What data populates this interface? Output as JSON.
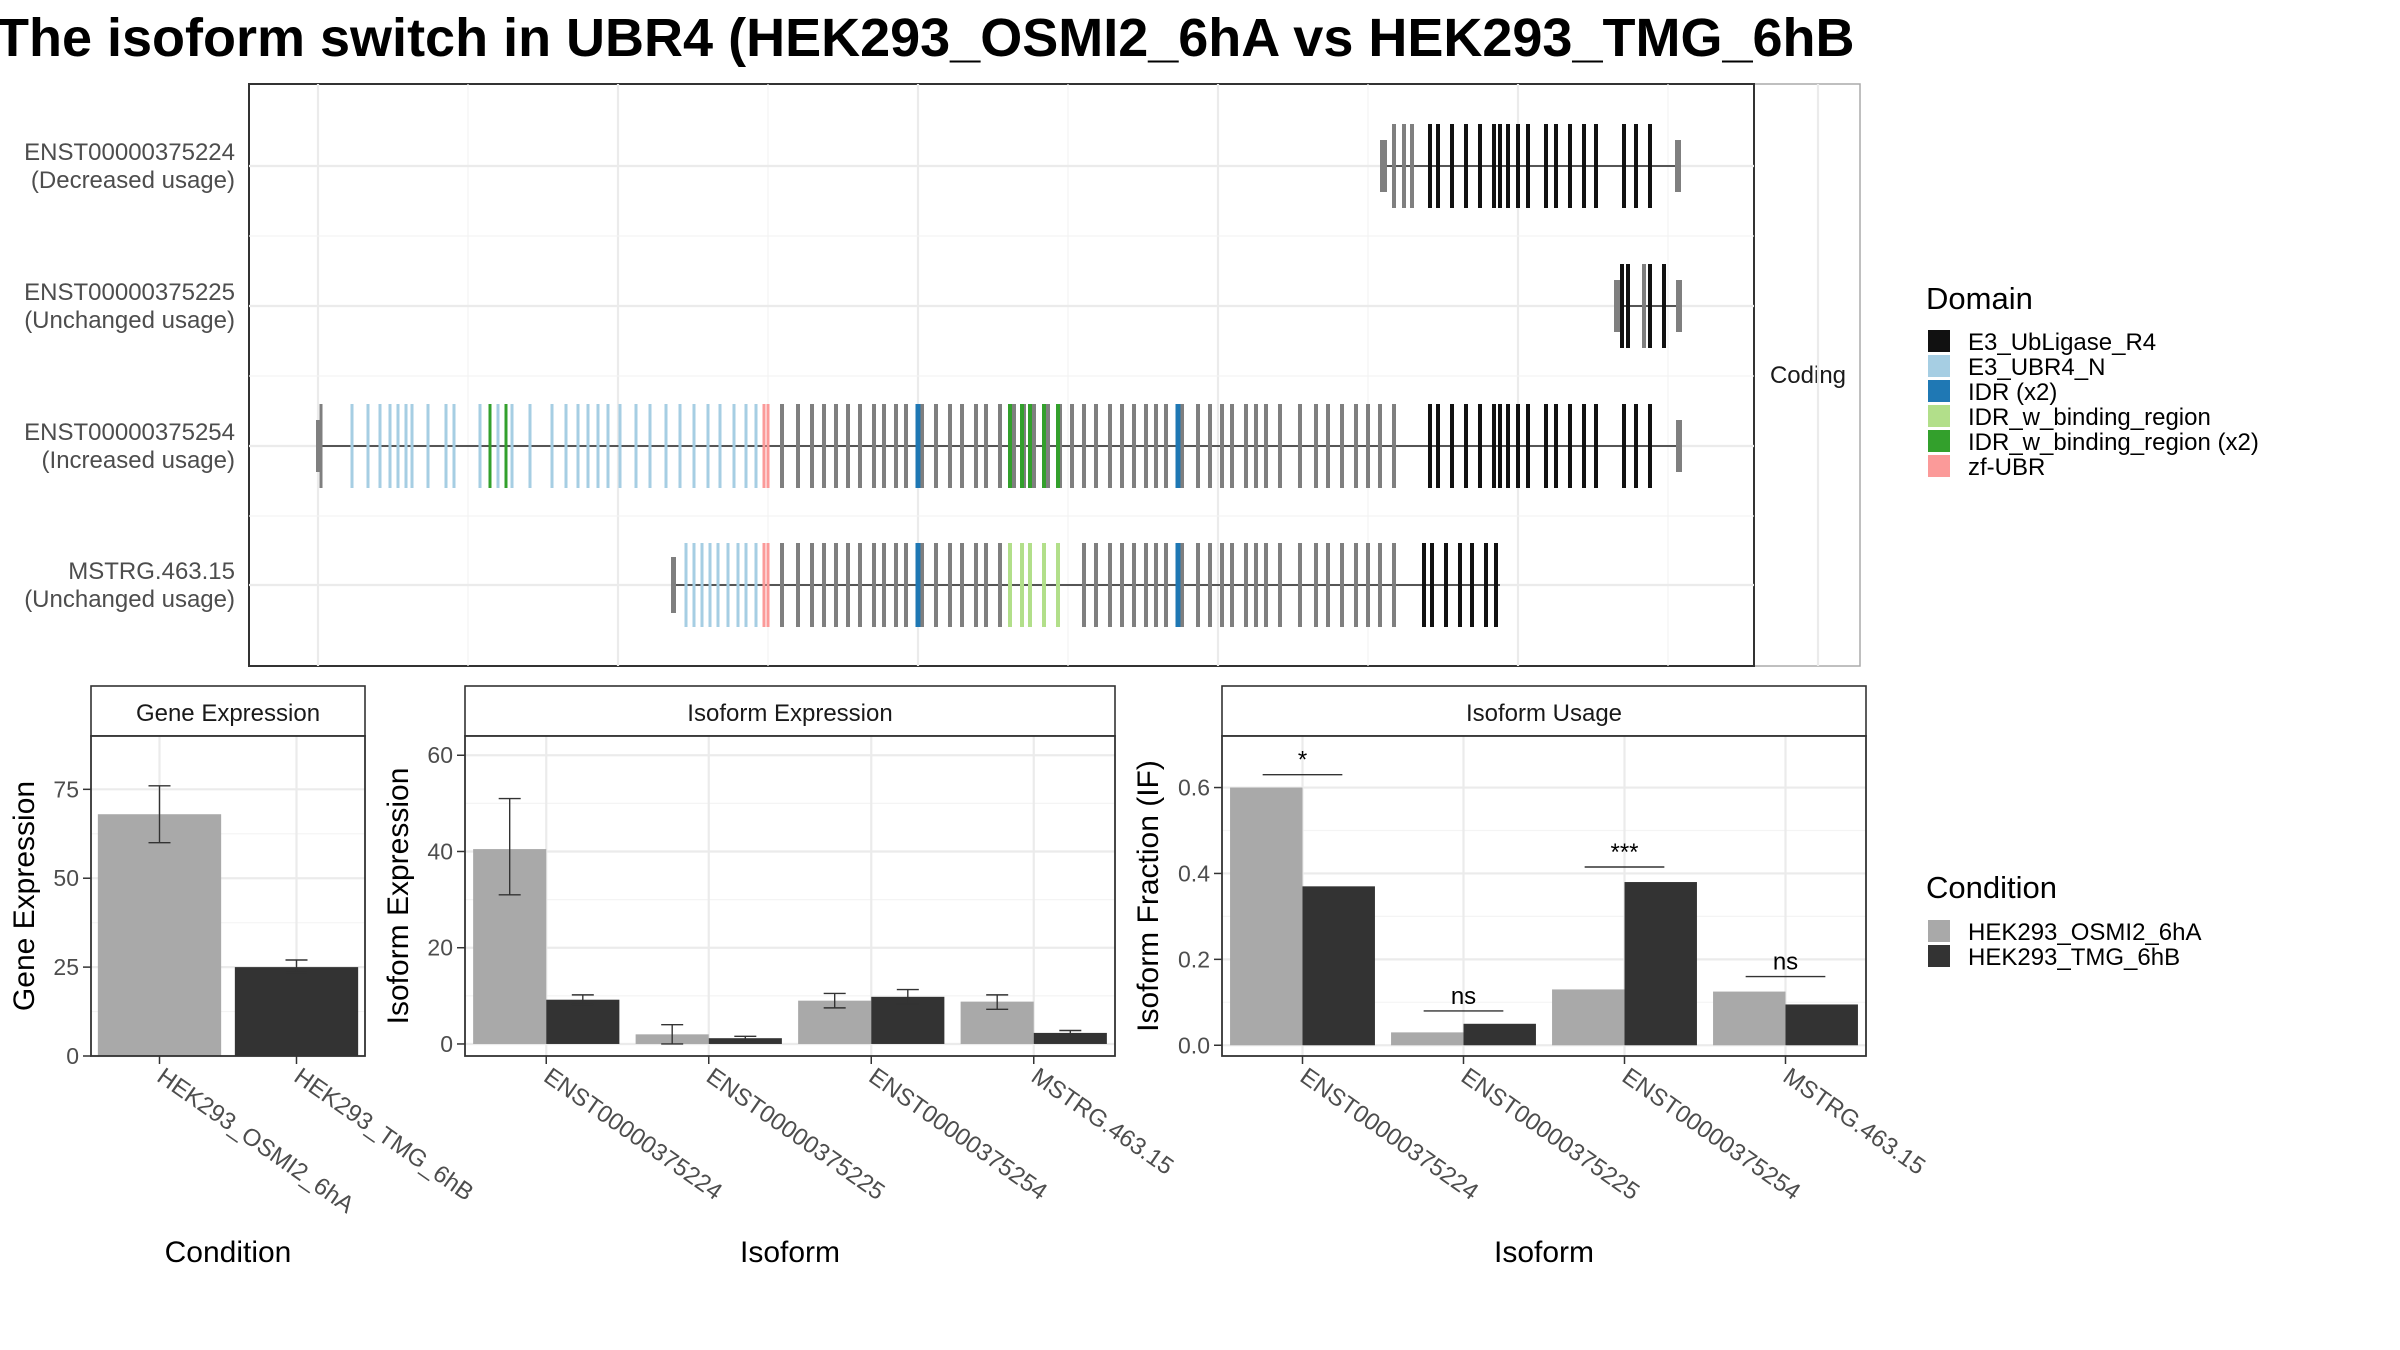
{
  "title": "The isoform switch in UBR4 (HEK293_OSMI2_6hA vs HEK293_TMG_6hB",
  "colors": {
    "cond_a": "#A9A9A9",
    "cond_b": "#333333",
    "utr": "#7F7F7F",
    "domain_E3_UbLigase_R4": "#111111",
    "domain_E3_UBR4_N": "#A6CEE3",
    "domain_IDR": "#1F78B4",
    "domain_IDR_w_binding_region": "#B2DF8A",
    "domain_IDR_w_binding_region_x2": "#33A02C",
    "domain_zf_UBR": "#FB9A99"
  },
  "structure_panel": {
    "strip_label": "Coding",
    "isoforms": [
      {
        "id": "ENST00000375224",
        "usage": "(Decreased usage)"
      },
      {
        "id": "ENST00000375225",
        "usage": "(Unchanged usage)"
      },
      {
        "id": "ENST00000375254",
        "usage": "(Increased usage)"
      },
      {
        "id": "MSTRG.463.15",
        "usage": "(Unchanged usage)"
      }
    ]
  },
  "domain_legend": {
    "title": "Domain",
    "entries": [
      "E3_UbLigase_R4",
      "E3_UBR4_N",
      "IDR (x2)",
      "IDR_w_binding_region",
      "IDR_w_binding_region (x2)",
      "zf-UBR"
    ]
  },
  "condition_legend": {
    "title": "Condition",
    "entries": [
      "HEK293_OSMI2_6hA",
      "HEK293_TMG_6hB"
    ]
  },
  "chart_data": [
    {
      "type": "bar",
      "panel_title": "Gene Expression",
      "xlabel": "Condition",
      "ylabel": "Gene Expression",
      "ylim": [
        0,
        90
      ],
      "yticks": [
        0,
        25,
        50,
        75
      ],
      "categories": [
        "HEK293_OSMI2_6hA",
        "HEK293_TMG_6hB"
      ],
      "values": [
        68,
        25
      ],
      "errors": [
        [
          60,
          76
        ],
        [
          23.5,
          27
        ]
      ]
    },
    {
      "type": "bar",
      "panel_title": "Isoform Expression",
      "xlabel": "Isoform",
      "ylabel": "Isoform Expression",
      "ylim": [
        -2.5,
        64
      ],
      "yticks": [
        0,
        20,
        40,
        60
      ],
      "categories": [
        "ENST00000375224",
        "ENST00000375225",
        "ENST00000375254",
        "MSTRG.463.15"
      ],
      "series": [
        {
          "name": "HEK293_OSMI2_6hA",
          "values": [
            40.5,
            2,
            9,
            8.8
          ],
          "errors": [
            [
              31,
              51
            ],
            [
              0,
              4
            ],
            [
              7.5,
              10.5
            ],
            [
              7.2,
              10.2
            ]
          ]
        },
        {
          "name": "HEK293_TMG_6hB",
          "values": [
            9.2,
            1.2,
            9.8,
            2.3
          ],
          "errors": [
            [
              8.2,
              10.2
            ],
            [
              0.9,
              1.6
            ],
            [
              8.3,
              11.3
            ],
            [
              1.8,
              2.8
            ]
          ]
        }
      ]
    },
    {
      "type": "bar",
      "panel_title": "Isoform Usage",
      "xlabel": "Isoform",
      "ylabel": "Isoform Fraction (IF)",
      "ylim": [
        -0.025,
        0.72
      ],
      "yticks": [
        "0.0",
        "0.2",
        "0.4",
        "0.6"
      ],
      "categories": [
        "ENST00000375224",
        "ENST00000375225",
        "ENST00000375254",
        "MSTRG.463.15"
      ],
      "series": [
        {
          "name": "HEK293_OSMI2_6hA",
          "values": [
            0.6,
            0.03,
            0.13,
            0.125
          ]
        },
        {
          "name": "HEK293_TMG_6hB",
          "values": [
            0.37,
            0.05,
            0.38,
            0.095
          ]
        }
      ],
      "significance": [
        "*",
        "ns",
        "***",
        "ns"
      ],
      "significance_y": [
        0.63,
        0.08,
        0.415,
        0.16
      ]
    }
  ]
}
